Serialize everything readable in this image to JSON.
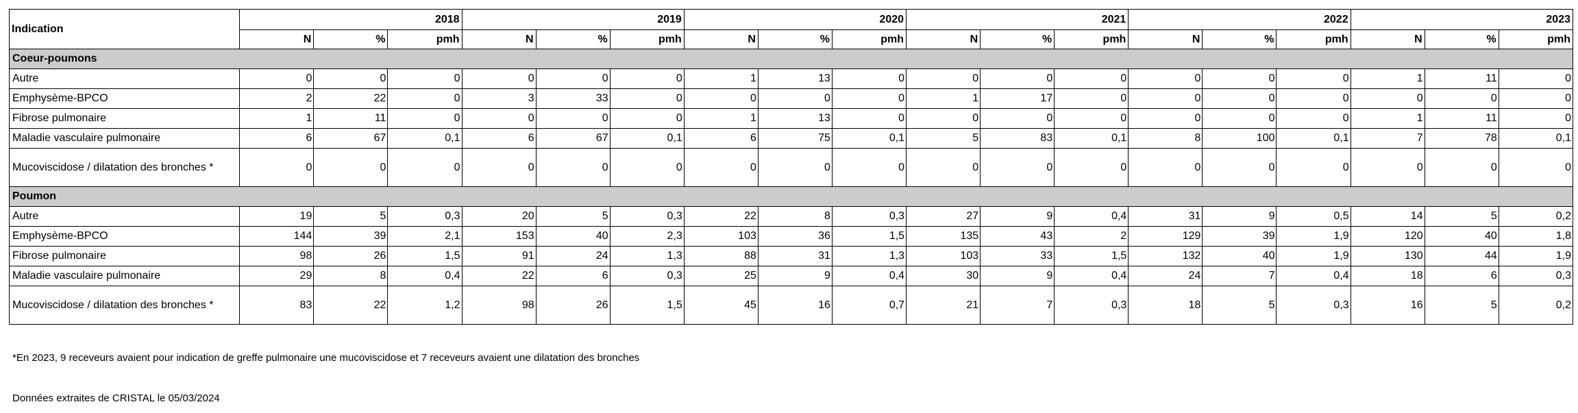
{
  "table": {
    "indication_header": "Indication",
    "years": [
      "2018",
      "2019",
      "2020",
      "2021",
      "2022",
      "2023"
    ],
    "subheaders": [
      "N",
      "%",
      "pmh"
    ],
    "sections": [
      {
        "title": "Coeur-poumons",
        "rows": [
          {
            "label": "Autre",
            "values": [
              "0",
              "0",
              "0",
              "0",
              "0",
              "0",
              "1",
              "13",
              "0",
              "0",
              "0",
              "0",
              "0",
              "0",
              "0",
              "1",
              "11",
              "0"
            ]
          },
          {
            "label": "Emphysème-BPCO",
            "values": [
              "2",
              "22",
              "0",
              "3",
              "33",
              "0",
              "0",
              "0",
              "0",
              "1",
              "17",
              "0",
              "0",
              "0",
              "0",
              "0",
              "0",
              "0"
            ]
          },
          {
            "label": "Fibrose pulmonaire",
            "values": [
              "1",
              "11",
              "0",
              "0",
              "0",
              "0",
              "1",
              "13",
              "0",
              "0",
              "0",
              "0",
              "0",
              "0",
              "0",
              "1",
              "11",
              "0"
            ]
          },
          {
            "label": "Maladie vasculaire pulmonaire",
            "values": [
              "6",
              "67",
              "0,1",
              "6",
              "67",
              "0,1",
              "6",
              "75",
              "0,1",
              "5",
              "83",
              "0,1",
              "8",
              "100",
              "0,1",
              "7",
              "78",
              "0,1"
            ]
          },
          {
            "label": "Mucoviscidose / dilatation des bronches *",
            "values": [
              "0",
              "0",
              "0",
              "0",
              "0",
              "0",
              "0",
              "0",
              "0",
              "0",
              "0",
              "0",
              "0",
              "0",
              "0",
              "0",
              "0",
              "0"
            ]
          }
        ]
      },
      {
        "title": "Poumon",
        "rows": [
          {
            "label": "Autre",
            "values": [
              "19",
              "5",
              "0,3",
              "20",
              "5",
              "0,3",
              "22",
              "8",
              "0,3",
              "27",
              "9",
              "0,4",
              "31",
              "9",
              "0,5",
              "14",
              "5",
              "0,2"
            ]
          },
          {
            "label": "Emphysème-BPCO",
            "values": [
              "144",
              "39",
              "2,1",
              "153",
              "40",
              "2,3",
              "103",
              "36",
              "1,5",
              "135",
              "43",
              "2",
              "129",
              "39",
              "1,9",
              "120",
              "40",
              "1,8"
            ]
          },
          {
            "label": "Fibrose pulmonaire",
            "values": [
              "98",
              "26",
              "1,5",
              "91",
              "24",
              "1,3",
              "88",
              "31",
              "1,3",
              "103",
              "33",
              "1,5",
              "132",
              "40",
              "1,9",
              "130",
              "44",
              "1,9"
            ]
          },
          {
            "label": "Maladie vasculaire pulmonaire",
            "values": [
              "29",
              "8",
              "0,4",
              "22",
              "6",
              "0,3",
              "25",
              "9",
              "0,4",
              "30",
              "9",
              "0,4",
              "24",
              "7",
              "0,4",
              "18",
              "6",
              "0,3"
            ]
          },
          {
            "label": "Mucoviscidose / dilatation des bronches *",
            "values": [
              "83",
              "22",
              "1,2",
              "98",
              "26",
              "1,5",
              "45",
              "16",
              "0,7",
              "21",
              "7",
              "0,3",
              "18",
              "5",
              "0,3",
              "16",
              "5",
              "0,2"
            ]
          }
        ]
      }
    ]
  },
  "footnote": "*En 2023, 9 receveurs avaient pour indication de greffe pulmonaire une mucoviscidose et 7 receveurs avaient une dilatation des bronches",
  "source": "Données extraites de CRISTAL le 05/03/2024"
}
